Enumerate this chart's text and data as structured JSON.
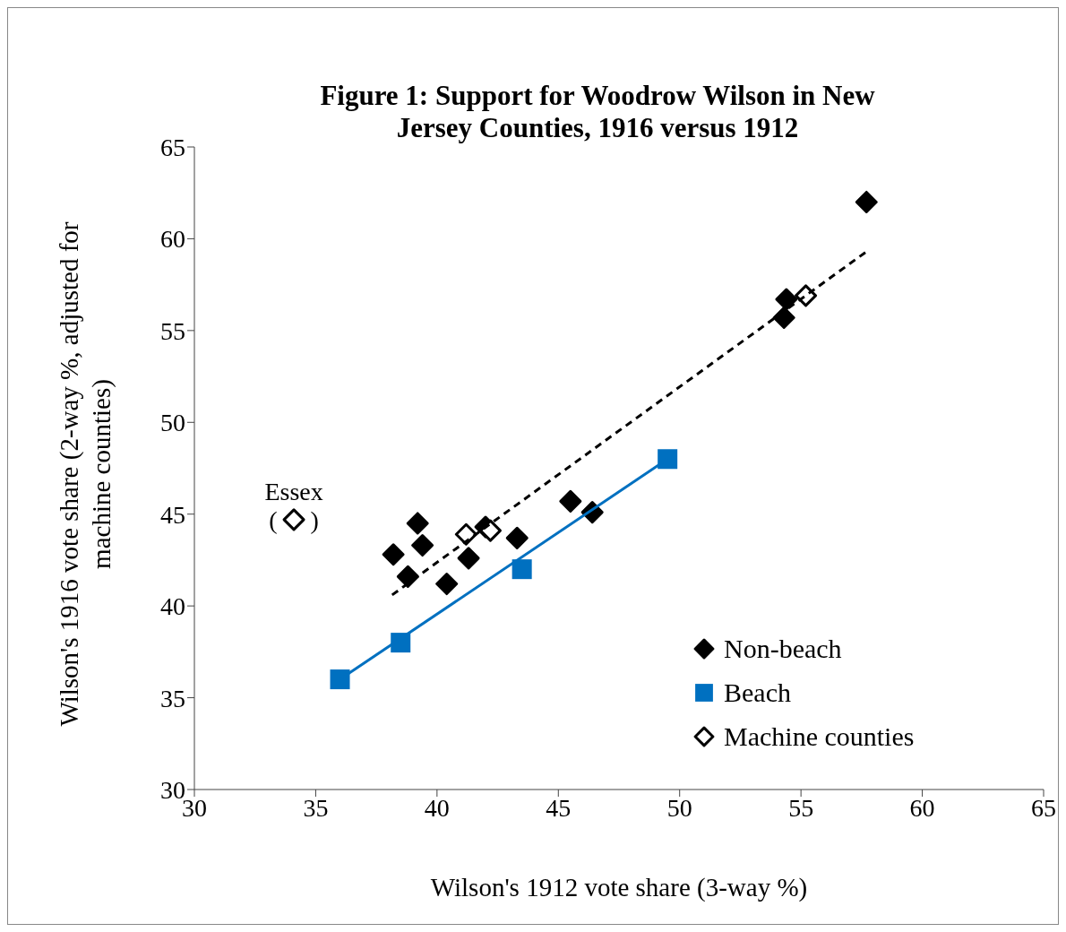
{
  "chart_data": {
    "type": "scatter",
    "title": "Figure 1: Support for Woodrow Wilson in New Jersey Counties, 1916 versus 1912",
    "xlabel": "Wilson's 1912 vote share (3-way %)",
    "ylabel": "Wilson's 1916 vote share (2-way %, adjusted for machine counties)",
    "xlim": [
      30,
      65
    ],
    "xticks": [
      30,
      35,
      40,
      45,
      50,
      55,
      60,
      65
    ],
    "ylim": [
      30,
      65
    ],
    "yticks": [
      30,
      35,
      40,
      45,
      50,
      55,
      60,
      65
    ],
    "grid": false,
    "legend": "bottom right",
    "series": [
      {
        "name": "Non-beach",
        "type": "scatter",
        "marker": "diamond",
        "color": "#000000",
        "x": [
          38.2,
          38.8,
          39.2,
          39.4,
          40.4,
          41.3,
          42.0,
          43.3,
          45.5,
          46.4,
          54.3,
          54.4,
          57.7
        ],
        "values": [
          42.8,
          41.6,
          44.5,
          43.3,
          41.2,
          42.6,
          44.3,
          43.7,
          45.7,
          45.1,
          55.7,
          56.7,
          62.0
        ]
      },
      {
        "name": "Beach",
        "type": "scatter",
        "marker": "square",
        "color": "#0070c0",
        "x": [
          36.0,
          38.5,
          43.5,
          49.5
        ],
        "values": [
          36.0,
          38.0,
          42.0,
          48.0
        ]
      },
      {
        "name": "Machine counties",
        "type": "scatter",
        "marker": "diamond",
        "color": "#ffffff",
        "x": [
          34.1,
          41.2,
          42.2,
          55.2
        ],
        "values": [
          44.7,
          43.9,
          44.1,
          56.9
        ]
      },
      {
        "type": "line",
        "marker": "none",
        "line_style": "dashed",
        "color": "#000000",
        "x": [
          38.15,
          57.7
        ],
        "values": [
          40.6,
          59.3
        ]
      },
      {
        "type": "line",
        "marker": "none",
        "line_style": "solid",
        "color": "#0070c0",
        "x": [
          36.0,
          49.5
        ],
        "values": [
          36.0,
          48.0
        ]
      }
    ],
    "annotations": [
      {
        "text": "Essex",
        "x": 34.1,
        "y": 44.7
      },
      {
        "text": "( )",
        "x": 34.1,
        "y": 44.7
      }
    ]
  }
}
